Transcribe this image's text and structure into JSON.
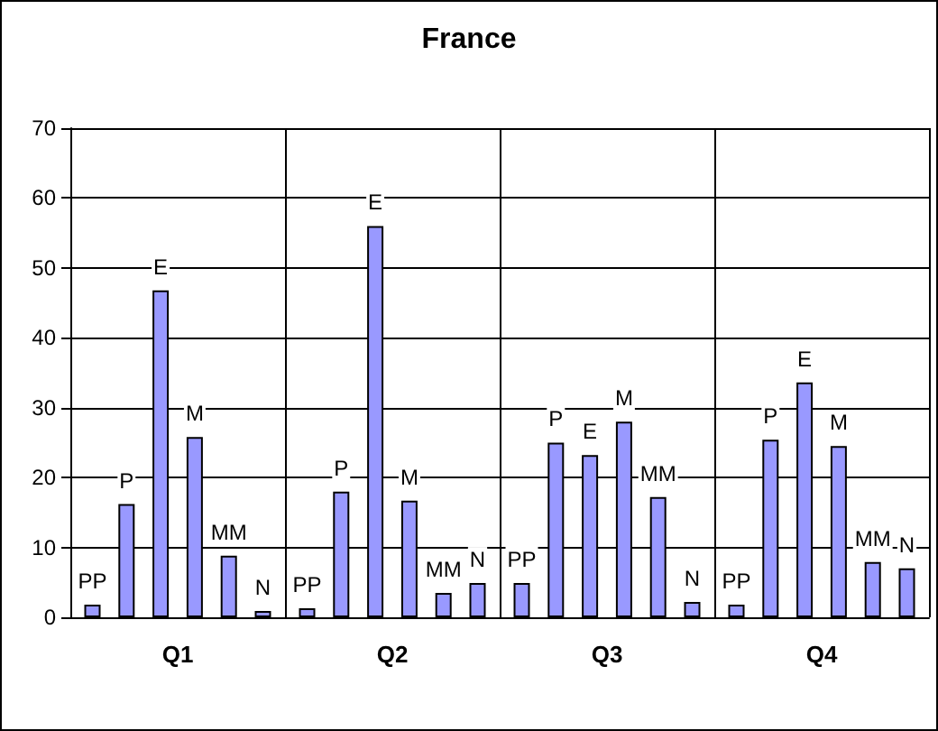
{
  "chart_data": {
    "type": "bar",
    "title": "France",
    "categories": [
      "Q1",
      "Q2",
      "Q3",
      "Q4"
    ],
    "series": [
      {
        "name": "PP",
        "color": "#9999ff",
        "values": [
          1.8,
          1.3,
          4.9,
          1.8
        ]
      },
      {
        "name": "P",
        "color": "#9999ff",
        "values": [
          16.2,
          18,
          25,
          25.4
        ]
      },
      {
        "name": "E",
        "color": "#9999ff",
        "values": [
          46.8,
          56,
          23.2,
          33.6
        ]
      },
      {
        "name": "M",
        "color": "#9999ff",
        "values": [
          25.8,
          16.7,
          28,
          24.5
        ]
      },
      {
        "name": "MM",
        "color": "#9999ff",
        "values": [
          8.8,
          3.5,
          17.2,
          7.9
        ]
      },
      {
        "name": "N",
        "color": "#9999ff",
        "values": [
          0.9,
          4.9,
          2.2,
          7
        ]
      }
    ],
    "ylim": [
      0,
      70
    ],
    "yticks": [
      0,
      10,
      20,
      30,
      40,
      50,
      60,
      70
    ],
    "grid": true,
    "legend": false
  }
}
